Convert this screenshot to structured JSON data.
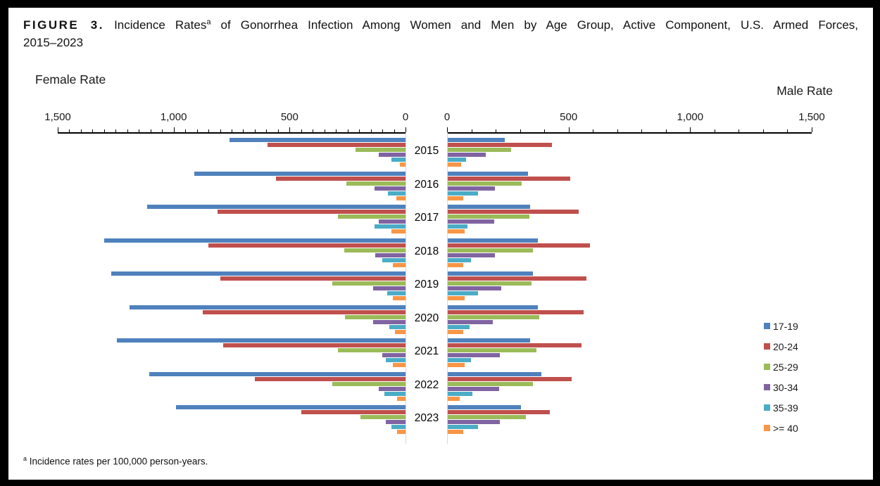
{
  "header": {
    "figure_label": "FIGURE 3.",
    "title_part1": "Incidence Rates",
    "title_sup": "a",
    "title_part2": "of Gonorrhea Infection Among Women and Men by Age Group, Active Component, U.S. Armed Forces,",
    "title_line2": "2015–2023"
  },
  "footnote": {
    "sup": "a",
    "text": "Incidence rates per 100,000 person-years."
  },
  "legend": {
    "items": [
      {
        "label": "17-19",
        "color": "#4F81BD"
      },
      {
        "label": "20-24",
        "color": "#C0504D"
      },
      {
        "label": "25-29",
        "color": "#9BBB59"
      },
      {
        "label": "30-34",
        "color": "#8064A2"
      },
      {
        "label": "35-39",
        "color": "#4BACC6"
      },
      {
        "label": ">= 40",
        "color": "#F79646"
      }
    ]
  },
  "chart_data": {
    "type": "bar",
    "layout": "population-pyramid",
    "units": "incidence rate per 100,000 person-years",
    "years": [
      "2015",
      "2016",
      "2017",
      "2018",
      "2019",
      "2020",
      "2021",
      "2022",
      "2023"
    ],
    "age_groups": [
      "17-19",
      "20-24",
      "25-29",
      "30-34",
      "35-39",
      ">= 40"
    ],
    "colors": {
      "17-19": "#4F81BD",
      "20-24": "#C0504D",
      "25-29": "#9BBB59",
      "30-34": "#8064A2",
      "35-39": "#4BACC6",
      ">= 40": "#F79646"
    },
    "axis": {
      "xlim": [
        0,
        1500
      ],
      "female_tick_labels": [
        "1,500",
        "1,000",
        "500",
        "0"
      ],
      "male_tick_labels": [
        "0",
        "500",
        "1,000",
        "1,500"
      ],
      "female_minor_step": 50,
      "male_minor_step": 100,
      "major_step": 500
    },
    "female": {
      "label": "Female Rate",
      "series": [
        {
          "name": "17-19",
          "values": [
            760,
            910,
            1115,
            1300,
            1270,
            1190,
            1245,
            1105,
            990
          ]
        },
        {
          "name": "20-24",
          "values": [
            595,
            560,
            810,
            850,
            800,
            875,
            785,
            650,
            450
          ]
        },
        {
          "name": "25-29",
          "values": [
            215,
            255,
            290,
            265,
            315,
            260,
            290,
            315,
            195
          ]
        },
        {
          "name": "30-34",
          "values": [
            115,
            135,
            115,
            130,
            140,
            140,
            100,
            115,
            85
          ]
        },
        {
          "name": "35-39",
          "values": [
            60,
            75,
            135,
            100,
            80,
            70,
            85,
            90,
            60
          ]
        },
        {
          "name": ">= 40",
          "values": [
            25,
            40,
            60,
            55,
            55,
            45,
            55,
            35,
            35
          ]
        }
      ]
    },
    "male": {
      "label": "Male Rate",
      "series": [
        {
          "name": "17-19",
          "values": [
            235,
            330,
            340,
            370,
            350,
            370,
            340,
            385,
            300
          ]
        },
        {
          "name": "20-24",
          "values": [
            430,
            505,
            540,
            585,
            570,
            560,
            550,
            510,
            420
          ]
        },
        {
          "name": "25-29",
          "values": [
            260,
            305,
            335,
            350,
            345,
            375,
            365,
            350,
            320
          ]
        },
        {
          "name": "30-34",
          "values": [
            155,
            195,
            190,
            195,
            220,
            185,
            215,
            210,
            215
          ]
        },
        {
          "name": "35-39",
          "values": [
            75,
            125,
            80,
            95,
            125,
            90,
            95,
            100,
            125
          ]
        },
        {
          "name": ">= 40",
          "values": [
            55,
            65,
            70,
            65,
            70,
            65,
            70,
            50,
            65
          ]
        }
      ]
    }
  }
}
